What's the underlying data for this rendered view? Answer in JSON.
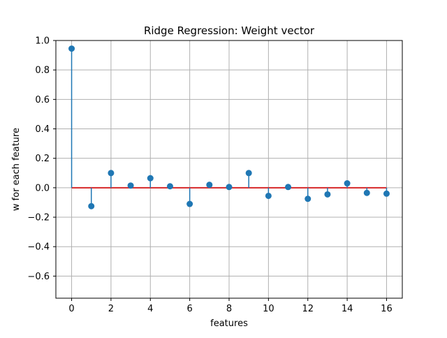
{
  "chart_data": {
    "type": "stem",
    "title": "Ridge Regression: Weight vector",
    "xlabel": "features",
    "ylabel": "w for each feature",
    "xlim": [
      -0.8,
      16.8
    ],
    "ylim": [
      -0.75,
      1.0
    ],
    "x_ticks": [
      0,
      2,
      4,
      6,
      8,
      10,
      12,
      14,
      16
    ],
    "y_ticks": [
      -0.6,
      -0.4,
      -0.2,
      0.0,
      0.2,
      0.4,
      0.6,
      0.8,
      1.0
    ],
    "x_tick_labels": [
      "0",
      "2",
      "4",
      "6",
      "8",
      "10",
      "12",
      "14",
      "16"
    ],
    "y_tick_labels": [
      "−0.6",
      "−0.4",
      "−0.2",
      "0.0",
      "0.2",
      "0.4",
      "0.6",
      "0.8",
      "1.0"
    ],
    "grid": true,
    "baseline": 0,
    "colors": {
      "stem": "#1f77b4",
      "marker": "#1f77b4",
      "baseline": "#d62728",
      "grid": "#b0b0b0",
      "axes": "#000000"
    },
    "x": [
      0,
      1,
      2,
      3,
      4,
      5,
      6,
      7,
      8,
      9,
      10,
      11,
      12,
      13,
      14,
      15,
      16
    ],
    "values": [
      0.945,
      -0.125,
      0.1,
      0.015,
      0.065,
      0.01,
      -0.11,
      0.02,
      0.005,
      0.1,
      -0.055,
      0.005,
      -0.075,
      -0.045,
      0.03,
      -0.035,
      -0.04
    ]
  }
}
